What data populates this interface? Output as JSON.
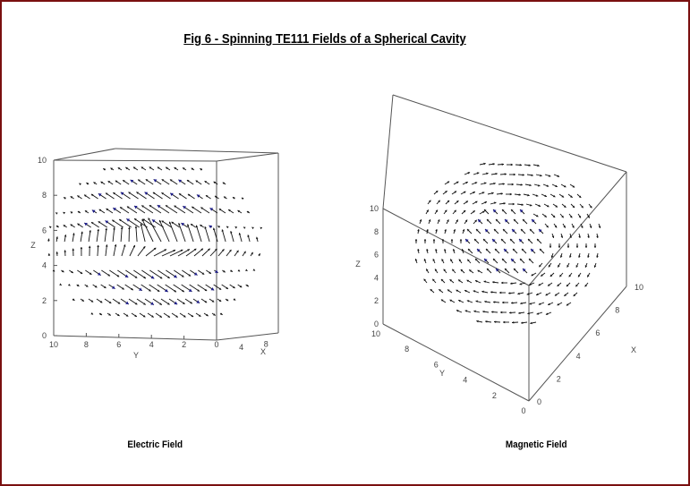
{
  "title": "Fig 6 - Spinning TE111 Fields of a Spherical Cavity",
  "colors": {
    "frame": "#7a1010",
    "arrow": "#111111",
    "arrow_head_strong": "#1a1a8c",
    "axes": "#555555"
  },
  "plots": [
    {
      "caption": "Electric Field",
      "z_label": "Z",
      "y_label": "Y",
      "x_label": "X",
      "z_ticks": [
        "0",
        "2",
        "4",
        "6",
        "8",
        "10"
      ],
      "y_ticks": [
        "10",
        "8",
        "6",
        "4",
        "2",
        "0"
      ],
      "x_ticks": [
        "4",
        "8"
      ]
    },
    {
      "caption": "Magnetic Field",
      "z_label": "Z",
      "y_label": "Y",
      "x_label": "X",
      "z_ticks": [
        "0",
        "2",
        "4",
        "6",
        "8",
        "10"
      ],
      "y_ticks": [
        "10",
        "8",
        "6",
        "4",
        "2",
        "0"
      ],
      "x_ticks": [
        "0",
        "2",
        "4",
        "6",
        "8",
        "10"
      ]
    }
  ]
}
